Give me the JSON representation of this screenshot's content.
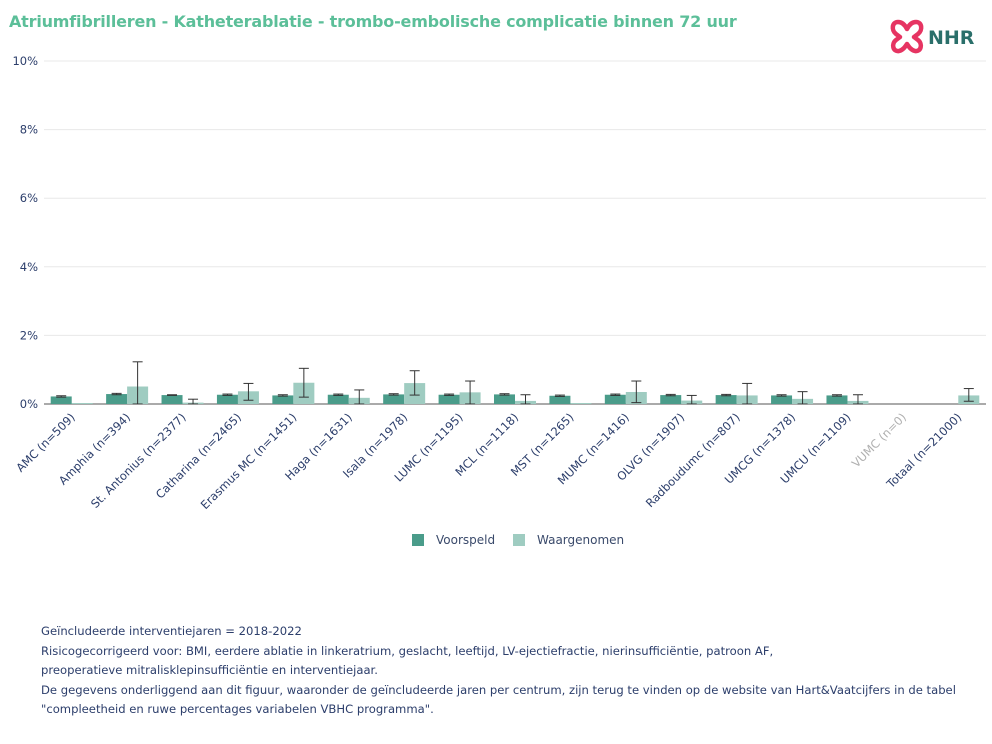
{
  "title": "Atriumfibrilleren - Katheterablatie - trombo-embolische complicatie binnen 72 uur",
  "logo": {
    "text": "NHR",
    "icon": "nhr-heart-logo-icon",
    "color": "#e63462",
    "text_color": "#2a6f6a"
  },
  "colors": {
    "voorspeld": "#4a9c8a",
    "waargenomen": "#9fccc1",
    "title": "#5cbf99",
    "axis_text": "#2c3e6b",
    "grid": "#e8e8e8",
    "disabled": "#b0b0b0"
  },
  "legend": {
    "voorspeld": "Voorspeld",
    "waargenomen": "Waargenomen"
  },
  "footer": {
    "line1": "Geïncludeerde interventiejaren = 2018-2022",
    "line2": "Risicogecorrigeerd voor: BMI, eerdere ablatie in linkeratrium, geslacht, leeftijd, LV-ejectiefractie, nierinsufficiëntie, patroon AF,",
    "line3": "preoperatieve mitralisklepinsufficiëntie en interventiejaar.",
    "line4": "De gegevens onderliggend aan dit figuur, waaronder de geïncludeerde jaren per centrum, zijn terug te vinden op de website van Hart&Vaatcijfers in de tabel",
    "line5": "\"compleetheid en ruwe percentages variabelen VBHC programma\"."
  },
  "chart_data": {
    "type": "bar",
    "ylim": [
      0,
      10
    ],
    "yticks": [
      0,
      2,
      4,
      6,
      8,
      10
    ],
    "ytick_labels": [
      "0%",
      "2%",
      "4%",
      "6%",
      "8%",
      "10%"
    ],
    "grid": true,
    "legend_position": "bottom-center",
    "categories": [
      "AMC (n=509)",
      "Amphia (n=394)",
      "St. Antonius (n=2377)",
      "Catharina (n=2465)",
      "Erasmus MC (n=1451)",
      "Haga (n=1631)",
      "Isala (n=1978)",
      "LUMC (n=1195)",
      "MCL (n=1118)",
      "MST (n=1265)",
      "MUMC (n=1416)",
      "OLVG (n=1907)",
      "Radboudumc (n=807)",
      "UMCG (n=1378)",
      "UMCU (n=1109)",
      "VUMC (n=0)",
      "Totaal (n=21000)"
    ],
    "disabled_categories": [
      "VUMC (n=0)"
    ],
    "series": [
      {
        "name": "Voorspeld",
        "values": [
          0.22,
          0.29,
          0.26,
          0.27,
          0.25,
          0.27,
          0.28,
          0.27,
          0.28,
          0.24,
          0.27,
          0.26,
          0.26,
          0.25,
          0.25,
          null,
          null
        ],
        "error_low": [
          0.2,
          0.27,
          0.25,
          0.25,
          0.23,
          0.25,
          0.26,
          0.25,
          0.26,
          0.22,
          0.25,
          0.24,
          0.24,
          0.23,
          0.23,
          null,
          null
        ],
        "error_high": [
          0.24,
          0.31,
          0.27,
          0.29,
          0.27,
          0.29,
          0.3,
          0.29,
          0.3,
          0.26,
          0.29,
          0.28,
          0.28,
          0.27,
          0.27,
          null,
          null
        ]
      },
      {
        "name": "Waargenomen",
        "values": [
          0.0,
          0.51,
          0.04,
          0.37,
          0.62,
          0.18,
          0.61,
          0.34,
          0.09,
          0.0,
          0.35,
          0.1,
          0.25,
          0.15,
          0.09,
          null,
          0.25
        ],
        "error_low": [
          null,
          0.0,
          0.0,
          0.11,
          0.2,
          0.0,
          0.26,
          0.0,
          0.0,
          null,
          0.04,
          0.0,
          0.0,
          0.0,
          0.0,
          null,
          0.08
        ],
        "error_high": [
          null,
          1.23,
          0.14,
          0.6,
          1.04,
          0.41,
          0.97,
          0.67,
          0.27,
          null,
          0.67,
          0.25,
          0.6,
          0.36,
          0.27,
          null,
          0.45
        ]
      }
    ]
  }
}
